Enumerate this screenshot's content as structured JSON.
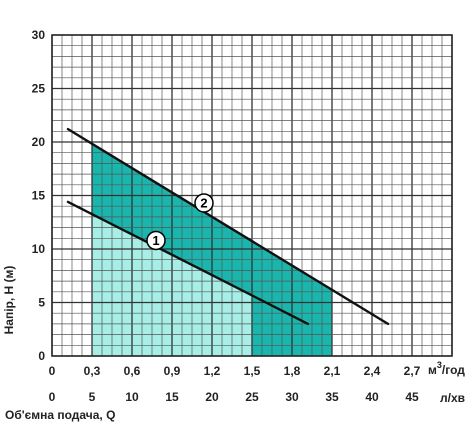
{
  "chart_data": {
    "type": "line",
    "ylabel": "Напір, Н (м)",
    "xlabel": "Об'ємна подача, Q",
    "x_unit_top": "м³/год",
    "x_unit_top_base": "м",
    "x_unit_top_sup": "3",
    "x_unit_top_rest": "/год",
    "x_unit_bottom": "л/хв",
    "y_range": [
      0,
      30
    ],
    "y_ticks": [
      "0",
      "5",
      "10",
      "15",
      "20",
      "25",
      "30"
    ],
    "x_range_lpm": [
      0,
      50
    ],
    "x_ticks_m3h": [
      "0",
      "0,3",
      "0,6",
      "0,9",
      "1,2",
      "1,5",
      "1,8",
      "2,1",
      "2,4",
      "2,7"
    ],
    "x_ticks_lpm": [
      "0",
      "5",
      "10",
      "15",
      "20",
      "25",
      "30",
      "35",
      "40",
      "45"
    ],
    "grid": true,
    "series": [
      {
        "name": "1",
        "x": [
          2,
          32
        ],
        "y": [
          14.4,
          3.0
        ],
        "color": "#111111",
        "work_zone": {
          "x": [
            5,
            25
          ],
          "fill": "#a6eee6"
        }
      },
      {
        "name": "2",
        "x": [
          2,
          42
        ],
        "y": [
          21.2,
          3.0
        ],
        "color": "#111111",
        "work_zone": {
          "x": [
            5,
            35
          ],
          "fill": "#1ab5ad"
        }
      }
    ],
    "markers": [
      {
        "label": "1",
        "x": 13,
        "y": 10.8
      },
      {
        "label": "2",
        "x": 19,
        "y": 14.3
      }
    ]
  }
}
